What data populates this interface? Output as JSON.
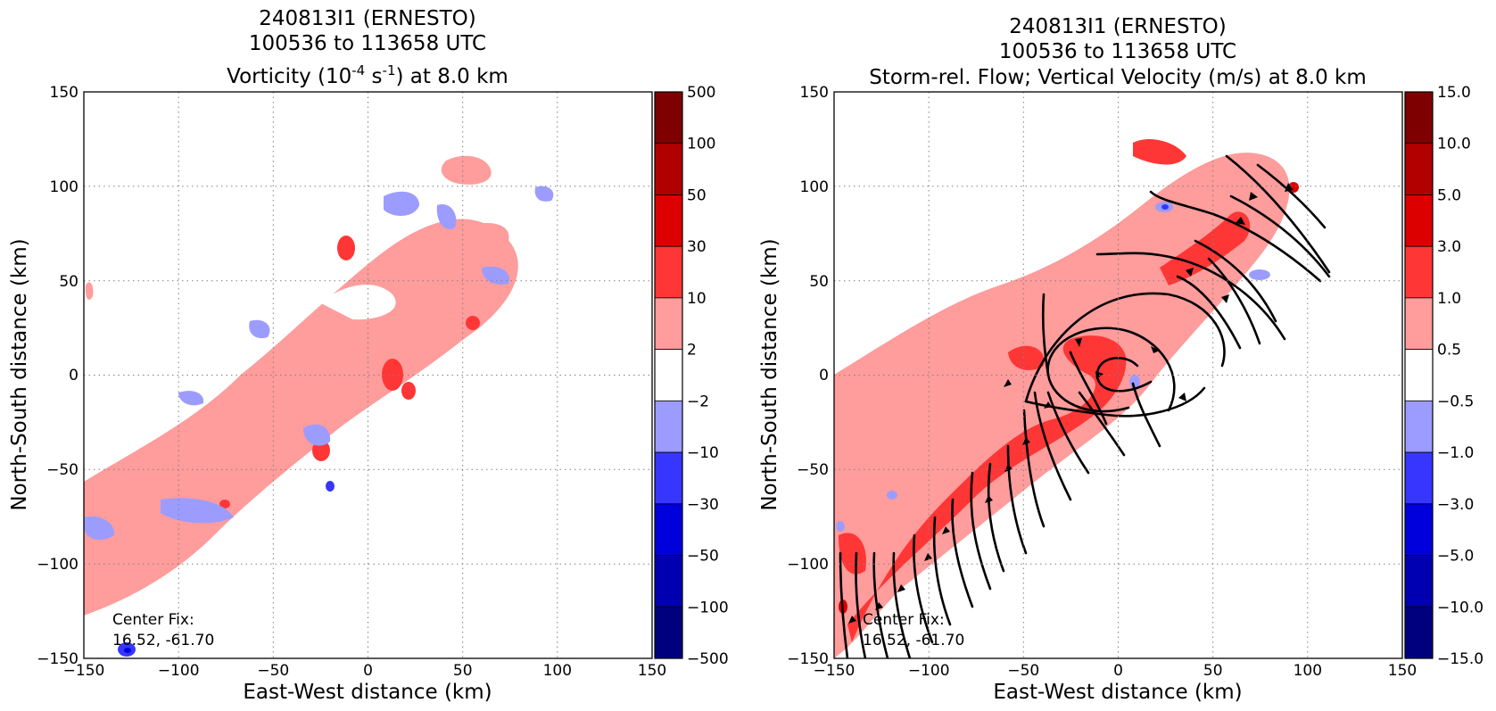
{
  "chart_data": [
    {
      "type": "heatmap",
      "title_line1": "240813I1 (ERNESTO)",
      "title_line2": "100536 to 113658 UTC",
      "title_line3_pre": "Vorticity (10",
      "title_line3_sup1": "-4",
      "title_line3_mid": " s",
      "title_line3_sup2": "-1",
      "title_line3_post": ") at 8.0 km",
      "xlabel": "East-West distance (km)",
      "ylabel": "North-South distance (km)",
      "xlim": [
        -150,
        150
      ],
      "ylim": [
        -150,
        150
      ],
      "x_ticks": [
        "−150",
        "−100",
        "−50",
        "0",
        "50",
        "100",
        "150"
      ],
      "y_ticks": [
        "150",
        "100",
        "50",
        "0",
        "−50",
        "−100",
        "−150"
      ],
      "grid": true,
      "colorbar_levels": [
        "500",
        "100",
        "50",
        "30",
        "10",
        "2",
        "−2",
        "−10",
        "−30",
        "−50",
        "−100",
        "−500"
      ],
      "colorbar_colors": [
        "#7f0000",
        "#b00000",
        "#dd0000",
        "#ff3636",
        "#ff9c9c",
        "#ffffff",
        "#9c9cff",
        "#3636ff",
        "#0000dd",
        "#0000b0",
        "#00007f"
      ],
      "annotation_line1": "Center Fix:",
      "annotation_line2": "16.52, -61.70"
    },
    {
      "type": "heatmap",
      "title_line1": "240813I1 (ERNESTO)",
      "title_line2": "100536 to 113658 UTC",
      "title_line3": "Storm-rel. Flow; Vertical Velocity (m/s) at 8.0 km",
      "xlabel": "East-West distance (km)",
      "ylabel": "North-South distance (km)",
      "xlim": [
        -150,
        150
      ],
      "ylim": [
        -150,
        150
      ],
      "x_ticks": [
        "−150",
        "−100",
        "−50",
        "0",
        "50",
        "100",
        "150"
      ],
      "y_ticks": [
        "150",
        "100",
        "50",
        "0",
        "−50",
        "−100",
        "−150"
      ],
      "grid": true,
      "colorbar_levels": [
        "15.0",
        "10.0",
        "5.0",
        "3.0",
        "1.0",
        "0.5",
        "−0.5",
        "−1.0",
        "−3.0",
        "−5.0",
        "−10.0",
        "−15.0"
      ],
      "colorbar_colors": [
        "#7f0000",
        "#b00000",
        "#dd0000",
        "#ff3636",
        "#ff9c9c",
        "#ffffff",
        "#9c9cff",
        "#3636ff",
        "#0000dd",
        "#0000b0",
        "#00007f"
      ],
      "annotation_line1": "Center Fix:",
      "annotation_line2": "16.52, -61.70"
    }
  ]
}
